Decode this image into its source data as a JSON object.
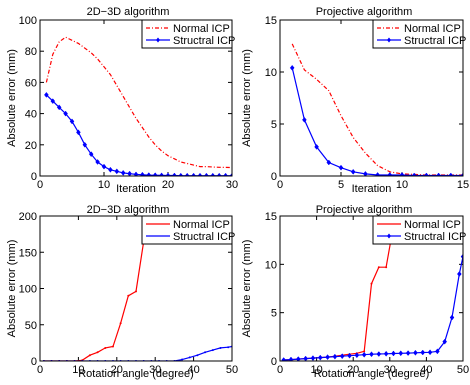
{
  "chart_data": [
    {
      "type": "line",
      "title": "2D−3D algorithm",
      "xlabel": "Iteration",
      "ylabel": "Absolute error (mm)",
      "xlim": [
        0,
        30
      ],
      "ylim": [
        0,
        100
      ],
      "xticks": [
        "0",
        "10",
        "20",
        "30"
      ],
      "yticks": [
        "0",
        "20",
        "40",
        "60",
        "80",
        "100"
      ],
      "legend": "top-right",
      "series": [
        {
          "name": "Normal ICP",
          "color": "#ff0000",
          "dash": "dashdot",
          "marker": "none",
          "x": [
            1,
            2,
            3,
            4,
            5,
            6,
            7,
            8,
            9,
            10,
            11,
            12,
            13,
            14,
            15,
            16,
            17,
            18,
            19,
            20,
            21,
            22,
            23,
            24,
            25,
            26,
            27,
            28,
            29,
            30
          ],
          "y": [
            60,
            78,
            86,
            89,
            87,
            85,
            82,
            79,
            75,
            70,
            65,
            58,
            51,
            44,
            37,
            31,
            25,
            20,
            16,
            13,
            11,
            9,
            8,
            7,
            6,
            6,
            5.8,
            5.6,
            5.5,
            5.4
          ]
        },
        {
          "name": "Structral ICP",
          "color": "#0000ff",
          "dash": "solid",
          "marker": "diamond",
          "x": [
            1,
            2,
            3,
            4,
            5,
            6,
            7,
            8,
            9,
            10,
            11,
            12,
            13,
            14,
            15,
            16,
            17,
            18,
            19,
            20,
            21,
            22,
            23,
            24,
            25,
            26,
            27,
            28,
            29,
            30
          ],
          "y": [
            52,
            48,
            44,
            40,
            35,
            28,
            20,
            14,
            9,
            6,
            4,
            3,
            2,
            1.5,
            1,
            0.8,
            0.6,
            0.5,
            0.4,
            0.3,
            0.3,
            0.2,
            0.2,
            0.2,
            0.2,
            0.2,
            0.2,
            0.2,
            0.2,
            0.2
          ]
        }
      ]
    },
    {
      "type": "line",
      "title": "Projective algorithm",
      "xlabel": "Iteration",
      "ylabel": "Absolute error (mm)",
      "xlim": [
        0,
        15
      ],
      "ylim": [
        0,
        15
      ],
      "xticks": [
        "0",
        "5",
        "10",
        "15"
      ],
      "yticks": [
        "0",
        "5",
        "10",
        "15"
      ],
      "legend": "top-right",
      "series": [
        {
          "name": "Normal ICP",
          "color": "#ff0000",
          "dash": "dashdot",
          "marker": "none",
          "x": [
            1,
            2,
            3,
            4,
            5,
            6,
            7,
            8,
            9,
            10,
            11,
            12,
            13,
            14,
            15
          ],
          "y": [
            12.7,
            10.2,
            9.3,
            8.2,
            5.8,
            3.7,
            2.2,
            1.0,
            0.4,
            0.2,
            0.15,
            0.1,
            0.1,
            0.1,
            0.1
          ]
        },
        {
          "name": "Structral ICP",
          "color": "#0000ff",
          "dash": "solid",
          "marker": "diamond",
          "x": [
            1,
            2,
            3,
            4,
            5,
            6,
            7,
            8,
            9,
            10,
            11,
            12,
            13,
            14,
            15
          ],
          "y": [
            10.4,
            5.4,
            2.8,
            1.3,
            0.8,
            0.4,
            0.2,
            0.1,
            0.1,
            0.1,
            0.05,
            0.05,
            0.05,
            0.05,
            0.05
          ]
        }
      ]
    },
    {
      "type": "line",
      "title": "2D−3D algorithm",
      "xlabel": "Rotation angle (degree)",
      "ylabel": "Absolute error (mm)",
      "xlim": [
        0,
        50
      ],
      "ylim": [
        0,
        200
      ],
      "xticks": [
        "0",
        "10",
        "20",
        "30",
        "40",
        "50"
      ],
      "yticks": [
        "0",
        "50",
        "100",
        "150",
        "200"
      ],
      "legend": "top-right",
      "series": [
        {
          "name": "Normal ICP",
          "color": "#ff0000",
          "dash": "solid",
          "marker": "point",
          "x": [
            1,
            3,
            5,
            7,
            9,
            11,
            13,
            15,
            17,
            19,
            21,
            23,
            25,
            27,
            29,
            31,
            33
          ],
          "y": [
            0,
            0,
            0,
            0,
            0,
            1,
            8,
            12,
            18,
            20,
            52,
            90,
            96,
            165,
            200,
            200,
            200
          ]
        },
        {
          "name": "Structral ICP",
          "color": "#0000ff",
          "dash": "solid",
          "marker": "point",
          "x": [
            1,
            3,
            5,
            7,
            9,
            11,
            13,
            15,
            17,
            19,
            21,
            23,
            25,
            27,
            29,
            31,
            33,
            35,
            37,
            39,
            41,
            43,
            45,
            47,
            49,
            50
          ],
          "y": [
            0,
            0,
            0,
            0,
            0,
            0,
            0,
            0,
            0,
            0,
            0,
            0,
            0,
            0,
            0,
            0,
            0,
            0,
            2,
            5,
            8,
            12,
            15,
            18,
            19,
            20
          ]
        }
      ]
    },
    {
      "type": "line",
      "title": "Projective algorithm",
      "xlabel": "Rotation angle (degree)",
      "ylabel": "Absolute error (mm)",
      "xlim": [
        0,
        50
      ],
      "ylim": [
        0,
        15
      ],
      "xticks": [
        "0",
        "10",
        "20",
        "30",
        "40",
        "50"
      ],
      "yticks": [
        "0",
        "5",
        "10",
        "15"
      ],
      "legend": "top-right",
      "series": [
        {
          "name": "Normal ICP",
          "color": "#ff0000",
          "dash": "solid",
          "marker": "point",
          "x": [
            1,
            3,
            5,
            7,
            9,
            11,
            13,
            15,
            17,
            19,
            21,
            23,
            25,
            27,
            29,
            31,
            33,
            35,
            37,
            39,
            41,
            43,
            45,
            47,
            49
          ],
          "y": [
            0.1,
            0.15,
            0.2,
            0.25,
            0.3,
            0.35,
            0.4,
            0.5,
            0.6,
            0.7,
            0.8,
            1.0,
            8.0,
            9.7,
            9.7,
            14,
            15,
            15,
            15,
            15,
            15,
            15,
            15,
            15,
            15
          ]
        },
        {
          "name": "Structral ICP",
          "color": "#0000ff",
          "dash": "solid",
          "marker": "diamond",
          "x": [
            1,
            3,
            5,
            7,
            9,
            11,
            13,
            15,
            17,
            19,
            21,
            23,
            25,
            27,
            29,
            31,
            33,
            35,
            37,
            39,
            41,
            43,
            45,
            47,
            49,
            50
          ],
          "y": [
            0.1,
            0.15,
            0.2,
            0.25,
            0.3,
            0.35,
            0.4,
            0.45,
            0.5,
            0.55,
            0.6,
            0.65,
            0.7,
            0.72,
            0.75,
            0.78,
            0.8,
            0.82,
            0.85,
            0.88,
            0.9,
            1.0,
            2.0,
            4.5,
            9.0,
            10.8
          ]
        }
      ]
    }
  ]
}
